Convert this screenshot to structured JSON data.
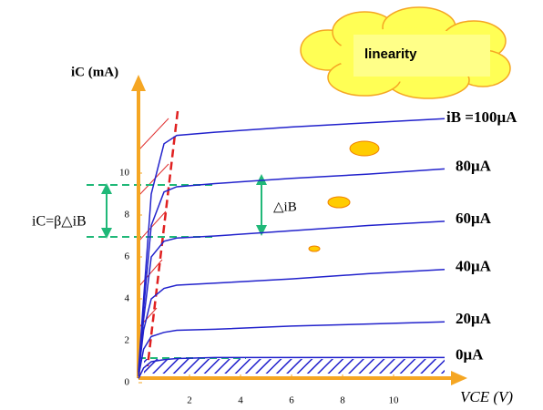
{
  "chart_data": {
    "type": "line",
    "title": "linearity",
    "y_label": "iC (mA)",
    "x_label": "VCE (V)",
    "annotations": [
      "iC=β△iB",
      "△iB"
    ],
    "x": [
      0,
      0.2,
      0.5,
      1,
      1.5,
      3,
      6,
      9,
      12
    ],
    "series": [
      {
        "name": "iB =100μA",
        "color": "#2222cc",
        "values": [
          0.6,
          4,
          9,
          11.4,
          11.8,
          11.95,
          12.2,
          12.4,
          12.6
        ]
      },
      {
        "name": "80μA",
        "color": "#2222cc",
        "values": [
          0.5,
          3.5,
          7.5,
          9.1,
          9.35,
          9.5,
          9.75,
          9.95,
          10.2
        ]
      },
      {
        "name": "60μA",
        "color": "#2222cc",
        "values": [
          0.5,
          3,
          6,
          6.75,
          6.9,
          7,
          7.25,
          7.5,
          7.7
        ]
      },
      {
        "name": "40μA",
        "color": "#2222cc",
        "values": [
          0.4,
          2.5,
          4,
          4.5,
          4.65,
          4.75,
          4.95,
          5.2,
          5.4
        ]
      },
      {
        "name": "20μA",
        "color": "#2222cc",
        "values": [
          0.3,
          1.6,
          2.2,
          2.4,
          2.5,
          2.55,
          2.7,
          2.8,
          2.9
        ]
      },
      {
        "name": "0μA",
        "color": "#2222cc",
        "values": [
          0.2,
          0.7,
          1,
          1.1,
          1.15,
          1.2,
          1.2,
          1.2,
          1.2
        ]
      }
    ],
    "xlim": [
      0,
      12.5
    ],
    "ylim": [
      0,
      14
    ],
    "xticks": [
      2,
      4,
      6,
      8,
      10
    ],
    "yticks": [
      0,
      2,
      4,
      6,
      8,
      10
    ],
    "axis_color": "#f5a623"
  }
}
